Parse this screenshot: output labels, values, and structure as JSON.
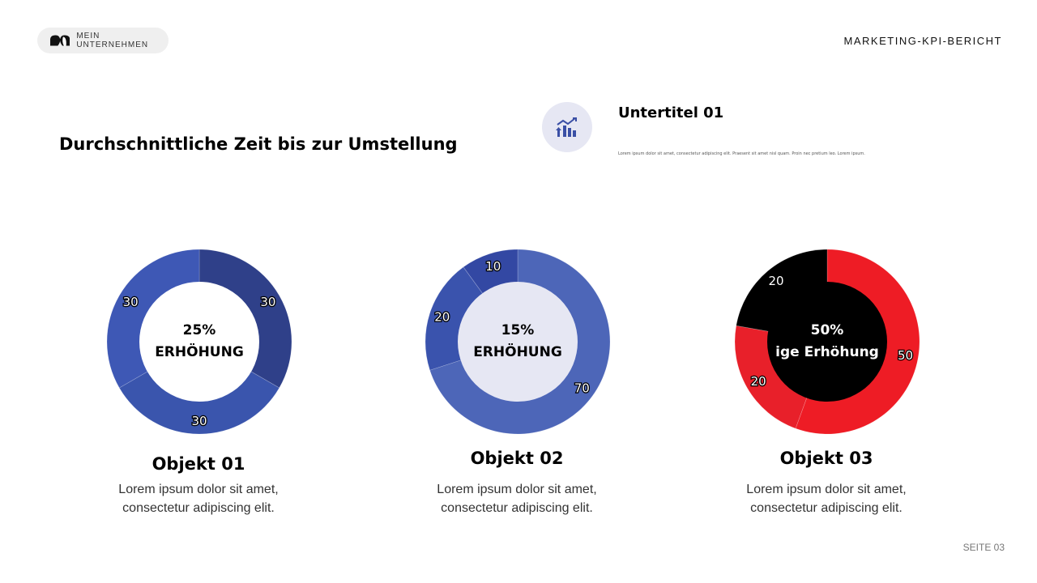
{
  "header": {
    "company": "MEIN UNTERNEHMEN",
    "report_title": "MARKETING-KPI-BERICHT"
  },
  "title": "Durchschnittliche Zeit bis zur Umstellung",
  "subtitle": {
    "icon": "chart-growth-icon",
    "title": "Untertitel 01",
    "text": "Lorem ipsum dolor sit amet, consectetur adipiscing elit. Praesent sit amet nisl quam. Proin nec pretium leo. Lorem ipsum."
  },
  "chart_data": [
    {
      "type": "pie",
      "variant": "donut",
      "values": [
        30,
        30,
        30
      ],
      "colors": [
        "#2f4089",
        "#3a55ad",
        "#3e58b5"
      ],
      "inner_color": "#ffffff",
      "center_line1": "25%",
      "center_line2": "ERHÖHUNG",
      "center_text_color": "#000000"
    },
    {
      "type": "pie",
      "variant": "donut",
      "values": [
        70,
        20,
        10
      ],
      "colors": [
        "#4d66b8",
        "#3a53ad",
        "#3348a3"
      ],
      "inner_color": "#e6e7f3",
      "center_line1": "15%",
      "center_line2": "ERHÖHUNG",
      "center_text_color": "#000000"
    },
    {
      "type": "pie",
      "variant": "donut",
      "values": [
        50,
        20,
        20
      ],
      "colors": [
        "#ee1c25",
        "#e8202a",
        "#000000"
      ],
      "inner_color": "#000000",
      "center_line1": "50%",
      "center_line2": "ige Erhöhung",
      "center_text_color": "#ffffff"
    }
  ],
  "objects": [
    {
      "title": "Objekt 01",
      "text1": "Lorem ipsum dolor sit amet,",
      "text2": "consectetur adipiscing elit."
    },
    {
      "title": "Objekt 02",
      "text1": "Lorem ipsum dolor sit amet,",
      "text2": "consectetur adipiscing elit."
    },
    {
      "title": "Objekt 03",
      "text1": "Lorem ipsum dolor sit amet,",
      "text2": "consectetur adipiscing elit."
    }
  ],
  "page": "SEITE 03"
}
